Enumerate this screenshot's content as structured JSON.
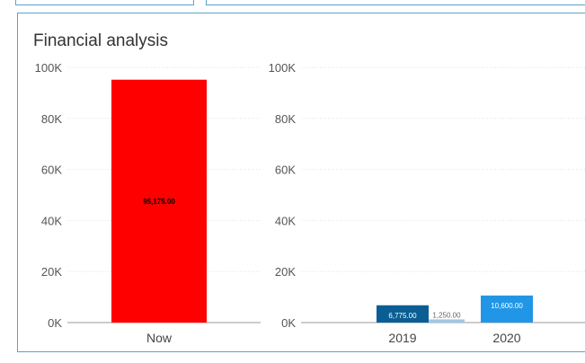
{
  "panel": {
    "title": "Financial analysis"
  },
  "chart_data": [
    {
      "type": "bar",
      "categories": [
        "Now"
      ],
      "values": [
        95175
      ],
      "data_labels": [
        "95,175.00"
      ],
      "ylim": [
        0,
        100000
      ],
      "y_ticks": [
        "0K",
        "20K",
        "40K",
        "60K",
        "80K",
        "100K"
      ],
      "colors": [
        "#ff0000"
      ],
      "grid": true
    },
    {
      "type": "bar",
      "categories": [
        "2019",
        "2020"
      ],
      "series": [
        {
          "values": [
            6775,
            10600
          ],
          "data_labels": [
            "6,775.00",
            "10,600.00"
          ],
          "colors": [
            "#0b5e93",
            "#2196e6"
          ]
        },
        {
          "values": [
            1250,
            null
          ],
          "data_labels": [
            "1,250.00",
            ""
          ],
          "colors": [
            "#9ec8e6",
            "#9ec8e6"
          ]
        }
      ],
      "ylim": [
        0,
        100000
      ],
      "y_ticks": [
        "0K",
        "20K",
        "40K",
        "60K",
        "80K",
        "100K"
      ],
      "grid": true
    }
  ]
}
